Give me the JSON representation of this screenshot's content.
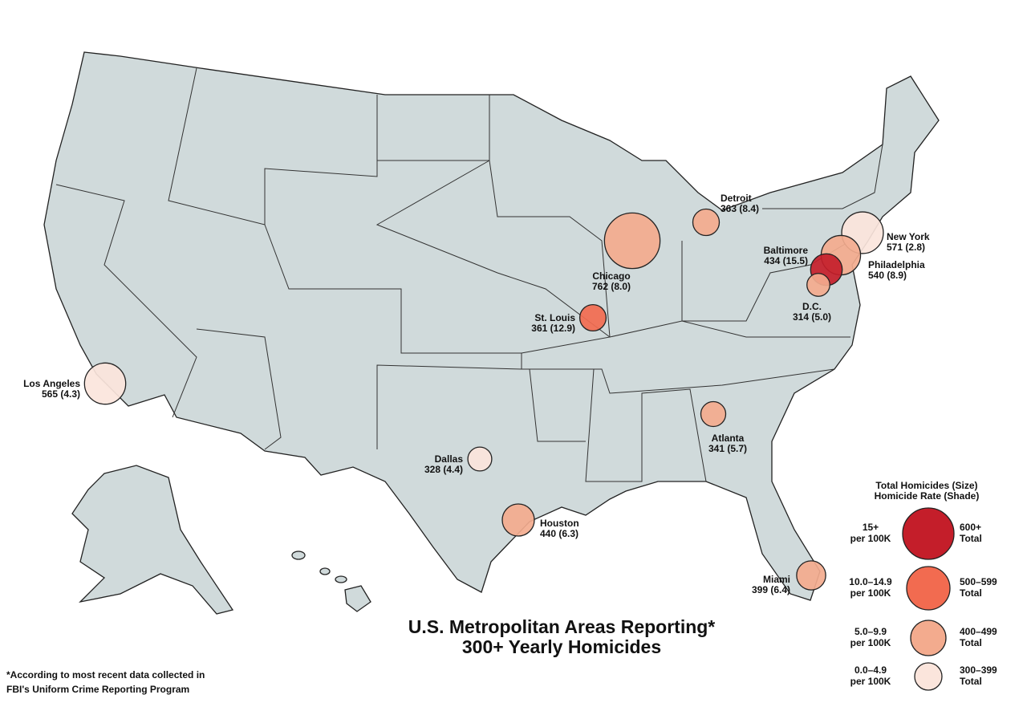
{
  "title": [
    "U.S. Metropolitan Areas Reporting*",
    "300+ Yearly Homicides"
  ],
  "footnote": [
    "*According to most recent data collected in",
    "FBI's  Uniform  Crime Reporting Program"
  ],
  "legend": {
    "title": [
      "Total Homicides (Size)",
      "Homicide Rate (Shade)"
    ],
    "entries": [
      {
        "rate_label": [
          "15+",
          "per 100K"
        ],
        "total_label": [
          "600+",
          "Total"
        ],
        "color": "#c41e2a"
      },
      {
        "rate_label": [
          "10.0–14.9",
          "per 100K"
        ],
        "total_label": [
          "500–599",
          "Total"
        ],
        "color": "#f26b50"
      },
      {
        "rate_label": [
          "5.0–9.9",
          "per 100K"
        ],
        "total_label": [
          "400–499",
          "Total"
        ],
        "color": "#f3ab8e"
      },
      {
        "rate_label": [
          "0.0–4.9",
          "per 100K"
        ],
        "total_label": [
          "300–399",
          "Total"
        ],
        "color": "#fbe5dc"
      }
    ]
  },
  "cities": [
    {
      "name": "Chicago",
      "total": 762,
      "rate": 8.0,
      "label": "762 (8.0)",
      "color": "#f3ab8e"
    },
    {
      "name": "New York",
      "total": 571,
      "rate": 2.8,
      "label": "571 (2.8)",
      "color": "#fbe5dc"
    },
    {
      "name": "Los Angeles",
      "total": 565,
      "rate": 4.3,
      "label": "565 (4.3)",
      "color": "#fbe5dc"
    },
    {
      "name": "Philadelphia",
      "total": 540,
      "rate": 8.9,
      "label": "540 (8.9)",
      "color": "#f3ab8e"
    },
    {
      "name": "Houston",
      "total": 440,
      "rate": 6.3,
      "label": "440 (6.3)",
      "color": "#f3ab8e"
    },
    {
      "name": "Baltimore",
      "total": 434,
      "rate": 15.5,
      "label": "434 (15.5)",
      "color": "#c41e2a"
    },
    {
      "name": "Miami",
      "total": 399,
      "rate": 6.4,
      "label": "399 (6.4)",
      "color": "#f3ab8e"
    },
    {
      "name": "Detroit",
      "total": 363,
      "rate": 8.4,
      "label": "363 (8.4)",
      "color": "#f3ab8e"
    },
    {
      "name": "St. Louis",
      "total": 361,
      "rate": 12.9,
      "label": "361 (12.9)",
      "color": "#f26b50"
    },
    {
      "name": "Atlanta",
      "total": 341,
      "rate": 5.7,
      "label": "341 (5.7)",
      "color": "#f3ab8e"
    },
    {
      "name": "Dallas",
      "total": 328,
      "rate": 4.4,
      "label": "328 (4.4)",
      "color": "#fbe5dc"
    },
    {
      "name": "D.C.",
      "total": 314,
      "rate": 5.0,
      "label": "314 (5.0)",
      "color": "#f3ab8e"
    }
  ]
}
